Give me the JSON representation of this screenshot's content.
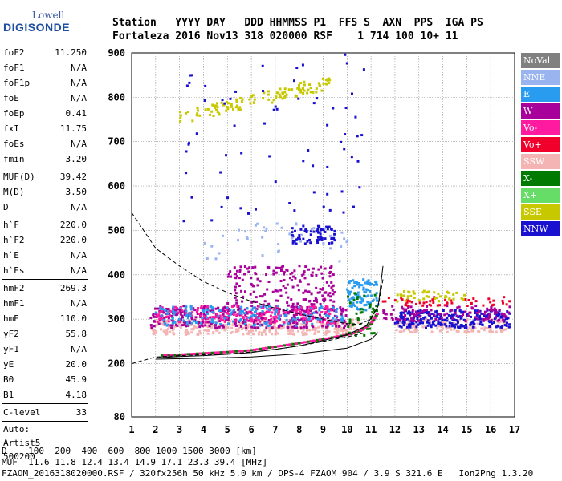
{
  "logo": {
    "brand": "Lowell",
    "product": "DIGISONDE"
  },
  "header": {
    "line1": "Station   YYYY DAY   DDD HHMMSS P1  FFS S  AXN  PPS  IGA PS",
    "line2": "Fortaleza 2016 Nov13 318 020000 RSF    1 714 100 10+ 11"
  },
  "params": {
    "groupA": [
      {
        "label": "foF2",
        "value": "11.250"
      },
      {
        "label": "foF1",
        "value": "N/A"
      },
      {
        "label": "foF1p",
        "value": "N/A"
      },
      {
        "label": "foE",
        "value": "N/A"
      },
      {
        "label": "foEp",
        "value": "0.41"
      },
      {
        "label": "fxI",
        "value": "11.75"
      },
      {
        "label": "foEs",
        "value": "N/A"
      },
      {
        "label": "fmin",
        "value": "3.20"
      }
    ],
    "groupB": [
      {
        "label": "MUF(D)",
        "value": "39.42"
      },
      {
        "label": "M(D)",
        "value": "3.50"
      },
      {
        "label": "D",
        "value": "N/A"
      }
    ],
    "groupC": [
      {
        "label": "h`F",
        "value": "220.0"
      },
      {
        "label": "h`F2",
        "value": "220.0"
      },
      {
        "label": "h`E",
        "value": "N/A"
      },
      {
        "label": "h`Es",
        "value": "N/A"
      }
    ],
    "groupD": [
      {
        "label": "hmF2",
        "value": "269.3"
      },
      {
        "label": "hmF1",
        "value": "N/A"
      },
      {
        "label": "hmE",
        "value": "110.0"
      },
      {
        "label": "yF2",
        "value": "55.8"
      },
      {
        "label": "yF1",
        "value": "N/A"
      },
      {
        "label": "yE",
        "value": "20.0"
      },
      {
        "label": "B0",
        "value": "45.9"
      },
      {
        "label": "B1",
        "value": "4.18"
      }
    ],
    "clevel": {
      "label": "C-level",
      "value": "33"
    },
    "auto": [
      "Auto:",
      "Artist5",
      "500200"
    ]
  },
  "legend": [
    {
      "label": "NoVal",
      "color": "#808080"
    },
    {
      "label": "NNE",
      "color": "#9ab4f0"
    },
    {
      "label": "E",
      "color": "#2a9cf0"
    },
    {
      "label": "W",
      "color": "#a8009a"
    },
    {
      "label": "Vo-",
      "color": "#ff1aa0"
    },
    {
      "label": "Vo+",
      "color": "#f0002a"
    },
    {
      "label": "SSW",
      "color": "#f4b4b4"
    },
    {
      "label": "X-",
      "color": "#007a00"
    },
    {
      "label": "X+",
      "color": "#66dd66"
    },
    {
      "label": "SSE",
      "color": "#c8c800"
    },
    {
      "label": "NNW",
      "color": "#1a10d0"
    }
  ],
  "footer": {
    "line1": "D    100  200  400  600  800 1000 1500 3000 [km]",
    "line2": "MUF  11.6 11.8 12.4 13.4 14.9 17.1 23.3 39.4 [MHz]",
    "line3": "FZAOM_2016318020000.RSF / 320fx256h 50 kHz 5.0 km / DPS-4 FZAOM 904 / 3.9 S 321.6 E   Ion2Png 1.3.20"
  },
  "chart_data": {
    "type": "scatter",
    "title": "",
    "xlabel": "",
    "ylabel": "",
    "xlim": [
      1,
      17
    ],
    "ylim": [
      80,
      900
    ],
    "xticks": [
      1,
      2,
      3,
      4,
      5,
      6,
      7,
      8,
      9,
      10,
      11,
      12,
      13,
      14,
      15,
      16,
      17
    ],
    "yticks": [
      80,
      200,
      300,
      400,
      500,
      600,
      700,
      800,
      900
    ],
    "clusters": [
      {
        "series": "SSE",
        "x": [
          3.0,
          9.3
        ],
        "y": [
          750,
          840
        ],
        "n": 120
      },
      {
        "series": "SSW",
        "x": [
          1.8,
          10.5
        ],
        "y": [
          265,
          300
        ],
        "n": 360
      },
      {
        "series": "SSW",
        "x": [
          12.0,
          16.8
        ],
        "y": [
          270,
          300
        ],
        "n": 140
      },
      {
        "series": "W",
        "x": [
          1.8,
          10.0
        ],
        "y": [
          280,
          330
        ],
        "n": 380
      },
      {
        "series": "W",
        "x": [
          5.0,
          9.5
        ],
        "y": [
          330,
          420
        ],
        "n": 180
      },
      {
        "series": "Vo-",
        "x": [
          2.0,
          9.5
        ],
        "y": [
          290,
          330
        ],
        "n": 180
      },
      {
        "series": "E",
        "x": [
          2.0,
          10.0
        ],
        "y": [
          285,
          330
        ],
        "n": 160
      },
      {
        "series": "E",
        "x": [
          10.0,
          11.3
        ],
        "y": [
          320,
          390
        ],
        "n": 90
      },
      {
        "series": "NNW",
        "x": [
          12.0,
          16.8
        ],
        "y": [
          280,
          320
        ],
        "n": 260
      },
      {
        "series": "NNW",
        "x": [
          7.7,
          9.5
        ],
        "y": [
          470,
          510
        ],
        "n": 70
      },
      {
        "series": "W",
        "x": [
          11.5,
          16.8
        ],
        "y": [
          295,
          330
        ],
        "n": 110
      },
      {
        "series": "Vo+",
        "x": [
          11.5,
          16.8
        ],
        "y": [
          330,
          350
        ],
        "n": 50
      },
      {
        "series": "SSE",
        "x": [
          12.0,
          15.0
        ],
        "y": [
          340,
          365
        ],
        "n": 45
      },
      {
        "series": "X-",
        "x": [
          10.0,
          11.3
        ],
        "y": [
          260,
          360
        ],
        "n": 40
      },
      {
        "series": "NNE",
        "x": [
          4.0,
          10.0
        ],
        "y": [
          430,
          520
        ],
        "n": 40
      },
      {
        "series": "NNW",
        "x": [
          3.0,
          11.0
        ],
        "y": [
          520,
          900
        ],
        "n": 70
      }
    ],
    "trace": {
      "series": "Vo-",
      "x": [
        2.3,
        3.0,
        4.0,
        5.0,
        6.0,
        7.0,
        8.0,
        9.0,
        10.0,
        10.5,
        11.0,
        11.3
      ],
      "y": [
        218,
        220,
        223,
        226,
        230,
        238,
        246,
        255,
        265,
        272,
        290,
        315
      ]
    },
    "curves": [
      {
        "style": "dashed",
        "x": [
          1.0,
          2.0,
          3.0,
          4.0,
          5.0,
          6.0,
          7.0,
          8.0,
          9.0,
          10.0,
          10.5,
          11.0,
          11.3,
          11.5
        ],
        "y": [
          540,
          460,
          420,
          385,
          360,
          340,
          325,
          312,
          300,
          290,
          288,
          300,
          330,
          390
        ]
      },
      {
        "style": "dashed",
        "x": [
          1.0,
          2.0,
          3.0,
          4.0,
          5.0,
          6.0,
          7.0,
          8.0,
          9.0,
          10.0,
          10.8
        ],
        "y": [
          200,
          215,
          218,
          220,
          222,
          226,
          232,
          240,
          250,
          260,
          270
        ]
      },
      {
        "style": "solid",
        "x": [
          2.0,
          3.0,
          4.0,
          5.0,
          6.0,
          7.0,
          8.0,
          9.0,
          10.0,
          10.8,
          11.3,
          11.5
        ],
        "y": [
          213,
          216,
          218,
          221,
          225,
          232,
          240,
          252,
          265,
          285,
          330,
          420
        ]
      },
      {
        "style": "solid",
        "x": [
          2.0,
          4.0,
          6.0,
          8.0,
          10.0,
          11.0,
          11.3
        ],
        "y": [
          210,
          212,
          215,
          222,
          235,
          255,
          270
        ]
      }
    ]
  }
}
